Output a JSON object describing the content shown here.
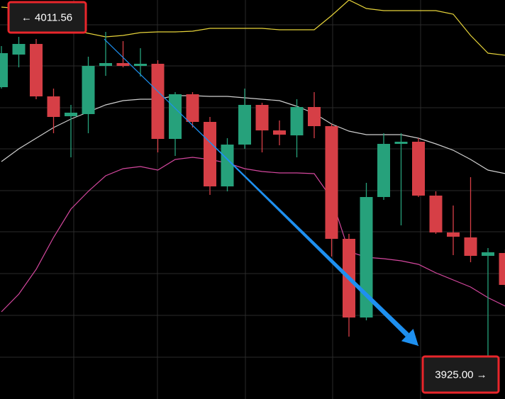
{
  "chart_data": {
    "type": "candlestick",
    "categories": [
      null,
      null,
      null,
      null,
      null,
      null,
      null,
      null,
      null,
      null,
      null,
      null,
      null,
      null,
      null,
      null,
      null,
      null,
      null,
      null,
      null,
      null,
      null,
      null,
      null,
      null,
      null,
      null,
      null,
      null
    ],
    "open": [
      3998.0,
      4007.2,
      4010.2,
      3995.4,
      3989.8,
      3990.4,
      4004.0,
      4004.8,
      4004.0,
      4004.6,
      3983.4,
      3996.0,
      3988.2,
      3970.0,
      3981.8,
      3993.0,
      3985.8,
      3984.4,
      3992.4,
      3987.0,
      3955.2,
      3933.0,
      3967.0,
      3982.0,
      3982.6,
      3967.4,
      3957.0,
      3955.6,
      3950.4,
      3951.2
    ],
    "high": [
      4009.6,
      4012.2,
      4011.6,
      3997.6,
      3993.0,
      4006.6,
      4013.6,
      4011.0,
      4009.0,
      4005.6,
      3996.6,
      3996.6,
      3989.6,
      3983.6,
      3997.6,
      3993.6,
      3988.6,
      3994.6,
      3996.6,
      3987.6,
      3956.6,
      3971.0,
      3985.0,
      3985.0,
      3983.6,
      3968.6,
      3964.6,
      3972.6,
      3952.6,
      3952.2
    ],
    "low": [
      3997.6,
      4003.6,
      3994.6,
      3985.0,
      3978.2,
      3985.0,
      4001.2,
      4003.6,
      4001.0,
      3979.6,
      3978.6,
      3986.6,
      3967.6,
      3968.6,
      3980.6,
      3979.6,
      3981.6,
      3978.2,
      3983.6,
      3950.2,
      3927.6,
      3932.2,
      3966.2,
      3959.0,
      3967.0,
      3956.6,
      3950.6,
      3948.6,
      3920.6,
      3941.6
    ],
    "close": [
      4007.6,
      4010.2,
      3995.4,
      3989.6,
      3990.8,
      4004.0,
      4004.8,
      4004.0,
      4004.6,
      3983.4,
      3996.0,
      3988.2,
      3970.0,
      3981.8,
      3993.0,
      3985.8,
      3984.6,
      3992.4,
      3987.0,
      3955.2,
      3933.0,
      3967.0,
      3982.0,
      3982.6,
      3967.4,
      3957.0,
      3955.8,
      3950.4,
      3951.4,
      3942.2
    ],
    "up_color": "#26a17b",
    "down_color": "#d63f46",
    "series": [
      {
        "color": "#e6d33a",
        "values": [
          4020.6,
          4020.2,
          4019.0,
          4017.0,
          4014.2,
          4013.2,
          4012.2,
          4012.6,
          4013.4,
          4013.6,
          4013.6,
          4013.8,
          4014.6,
          4014.6,
          4014.6,
          4014.6,
          4014.2,
          4014.2,
          4014.2,
          4018.2,
          4022.6,
          4020.2,
          4019.6,
          4019.6,
          4019.6,
          4019.6,
          4018.6,
          4012.6,
          4007.6,
          4007.0
        ]
      },
      {
        "color": "#cfcfcf",
        "values": [
          3977.0,
          3980.6,
          3983.6,
          3986.6,
          3989.0,
          3991.0,
          3993.0,
          3994.2,
          3994.6,
          3994.6,
          3995.6,
          3995.6,
          3995.4,
          3995.4,
          3995.0,
          3994.6,
          3994.2,
          3992.6,
          3990.6,
          3987.6,
          3985.6,
          3984.6,
          3984.6,
          3984.6,
          3983.6,
          3982.0,
          3980.2,
          3977.6,
          3974.6,
          3973.6
        ]
      },
      {
        "color": "#d4479e",
        "values": [
          3934.6,
          3939.6,
          3946.6,
          3955.6,
          3963.6,
          3968.6,
          3973.0,
          3975.0,
          3975.6,
          3974.6,
          3977.6,
          3978.2,
          3977.6,
          3976.6,
          3975.0,
          3974.2,
          3973.8,
          3973.8,
          3973.6,
          3966.6,
          3951.6,
          3950.0,
          3949.6,
          3949.0,
          3948.0,
          3945.6,
          3943.6,
          3941.6,
          3938.6,
          3936.2
        ]
      }
    ],
    "ylim": [
      3910.0,
      4022.6
    ],
    "yticks": [
      4015.6,
      4004.0,
      3992.2,
      3980.6,
      3968.8,
      3957.2,
      3945.4,
      3933.6,
      3921.8
    ],
    "grid": true,
    "trendline": [
      {
        "value": 4011.56,
        "label": "← 4011.56"
      },
      {
        "value": 3925,
        "label": "3925.00 →"
      }
    ],
    "trendline_color": "#1e90f0"
  }
}
